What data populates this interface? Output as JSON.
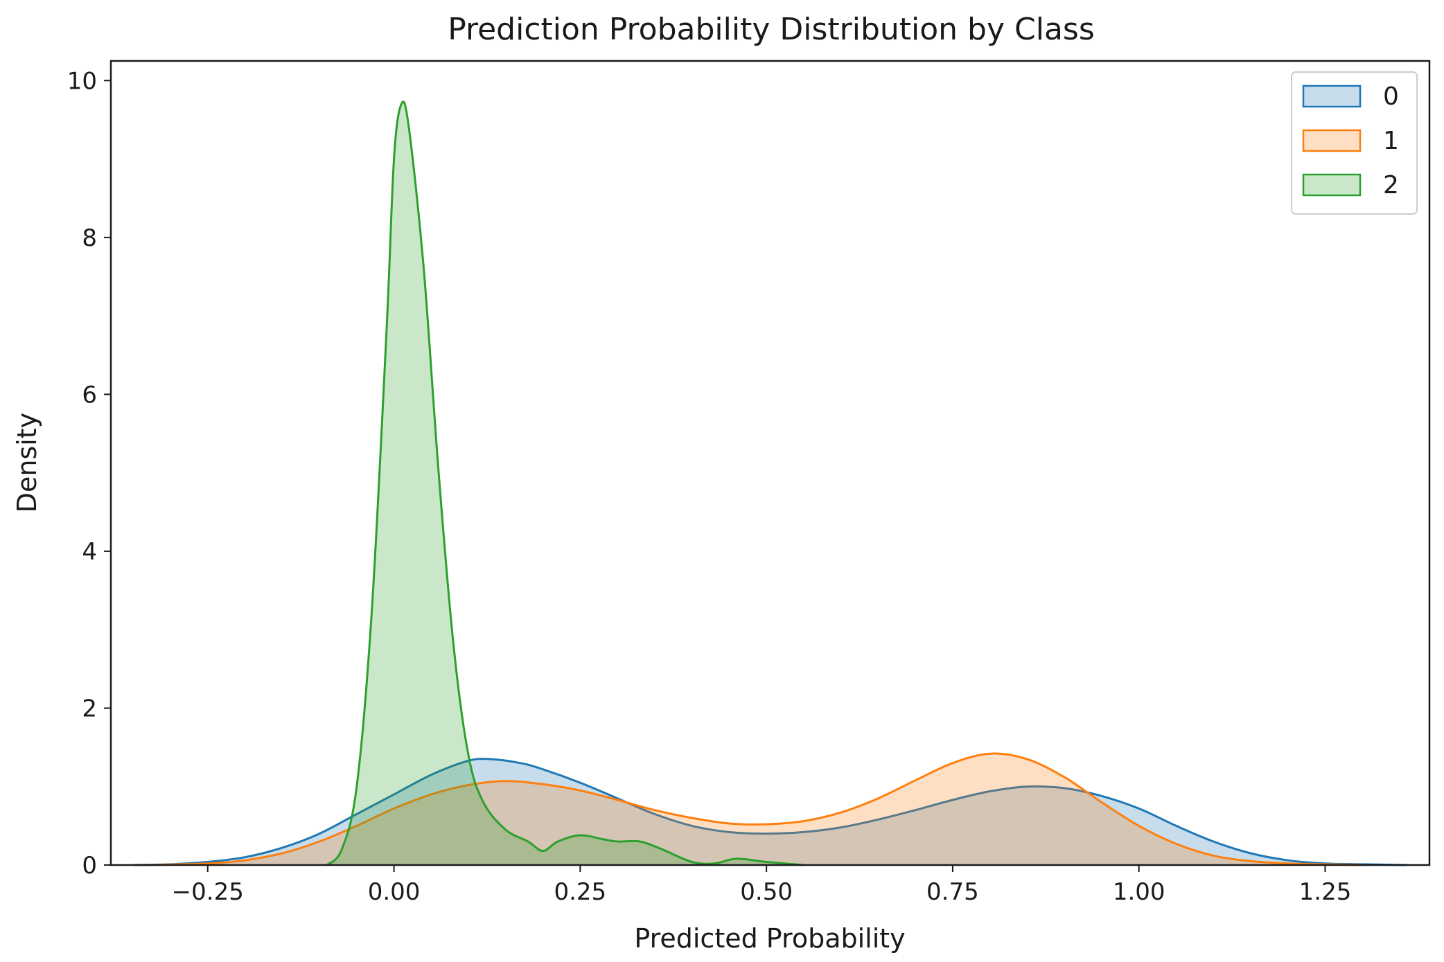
{
  "chart_data": {
    "type": "area",
    "title": "Prediction Probability Distribution by Class",
    "xlabel": "Predicted Probability",
    "ylabel": "Density",
    "xlim": [
      -0.38,
      1.39
    ],
    "ylim": [
      0,
      10.25
    ],
    "x_ticks": [
      -0.25,
      0.0,
      0.25,
      0.5,
      0.75,
      1.0,
      1.25
    ],
    "x_tick_labels": [
      "−0.25",
      "0.00",
      "0.25",
      "0.50",
      "0.75",
      "1.00",
      "1.25"
    ],
    "y_ticks": [
      0,
      2,
      4,
      6,
      8,
      10
    ],
    "y_tick_labels": [
      "0",
      "2",
      "4",
      "6",
      "8",
      "10"
    ],
    "grid": false,
    "legend_position": "top-right",
    "series": [
      {
        "name": "0",
        "color": "#1f77b4",
        "points": [
          [
            -0.35,
            0
          ],
          [
            -0.3,
            0.01
          ],
          [
            -0.25,
            0.04
          ],
          [
            -0.2,
            0.1
          ],
          [
            -0.15,
            0.22
          ],
          [
            -0.1,
            0.4
          ],
          [
            -0.05,
            0.65
          ],
          [
            0.0,
            0.9
          ],
          [
            0.05,
            1.15
          ],
          [
            0.1,
            1.33
          ],
          [
            0.13,
            1.35
          ],
          [
            0.17,
            1.3
          ],
          [
            0.2,
            1.22
          ],
          [
            0.25,
            1.05
          ],
          [
            0.3,
            0.85
          ],
          [
            0.35,
            0.65
          ],
          [
            0.4,
            0.5
          ],
          [
            0.45,
            0.42
          ],
          [
            0.5,
            0.4
          ],
          [
            0.55,
            0.42
          ],
          [
            0.6,
            0.48
          ],
          [
            0.65,
            0.58
          ],
          [
            0.7,
            0.7
          ],
          [
            0.75,
            0.83
          ],
          [
            0.8,
            0.94
          ],
          [
            0.85,
            1.0
          ],
          [
            0.9,
            0.98
          ],
          [
            0.95,
            0.88
          ],
          [
            1.0,
            0.72
          ],
          [
            1.05,
            0.5
          ],
          [
            1.1,
            0.3
          ],
          [
            1.15,
            0.15
          ],
          [
            1.2,
            0.06
          ],
          [
            1.25,
            0.02
          ],
          [
            1.3,
            0.01
          ],
          [
            1.36,
            0
          ]
        ]
      },
      {
        "name": "1",
        "color": "#ff7f0e",
        "points": [
          [
            -0.33,
            0
          ],
          [
            -0.25,
            0.02
          ],
          [
            -0.2,
            0.06
          ],
          [
            -0.15,
            0.15
          ],
          [
            -0.1,
            0.3
          ],
          [
            -0.05,
            0.5
          ],
          [
            0.0,
            0.72
          ],
          [
            0.05,
            0.9
          ],
          [
            0.1,
            1.02
          ],
          [
            0.15,
            1.07
          ],
          [
            0.2,
            1.03
          ],
          [
            0.25,
            0.95
          ],
          [
            0.3,
            0.83
          ],
          [
            0.35,
            0.7
          ],
          [
            0.4,
            0.6
          ],
          [
            0.45,
            0.53
          ],
          [
            0.5,
            0.52
          ],
          [
            0.55,
            0.56
          ],
          [
            0.6,
            0.67
          ],
          [
            0.65,
            0.85
          ],
          [
            0.7,
            1.08
          ],
          [
            0.75,
            1.3
          ],
          [
            0.8,
            1.42
          ],
          [
            0.85,
            1.35
          ],
          [
            0.9,
            1.12
          ],
          [
            0.95,
            0.8
          ],
          [
            1.0,
            0.5
          ],
          [
            1.05,
            0.27
          ],
          [
            1.1,
            0.12
          ],
          [
            1.15,
            0.05
          ],
          [
            1.2,
            0.02
          ],
          [
            1.3,
            0
          ]
        ]
      },
      {
        "name": "2",
        "color": "#2ca02c",
        "points": [
          [
            -0.09,
            0
          ],
          [
            -0.07,
            0.2
          ],
          [
            -0.05,
            1.0
          ],
          [
            -0.03,
            3.2
          ],
          [
            -0.01,
            6.8
          ],
          [
            0.0,
            9.0
          ],
          [
            0.01,
            9.7
          ],
          [
            0.02,
            9.4
          ],
          [
            0.04,
            7.6
          ],
          [
            0.06,
            5.0
          ],
          [
            0.08,
            2.8
          ],
          [
            0.1,
            1.4
          ],
          [
            0.12,
            0.8
          ],
          [
            0.15,
            0.45
          ],
          [
            0.18,
            0.3
          ],
          [
            0.2,
            0.18
          ],
          [
            0.22,
            0.3
          ],
          [
            0.25,
            0.38
          ],
          [
            0.28,
            0.33
          ],
          [
            0.3,
            0.3
          ],
          [
            0.33,
            0.3
          ],
          [
            0.36,
            0.2
          ],
          [
            0.4,
            0.04
          ],
          [
            0.43,
            0.02
          ],
          [
            0.46,
            0.08
          ],
          [
            0.5,
            0.04
          ],
          [
            0.55,
            0
          ]
        ]
      }
    ]
  }
}
